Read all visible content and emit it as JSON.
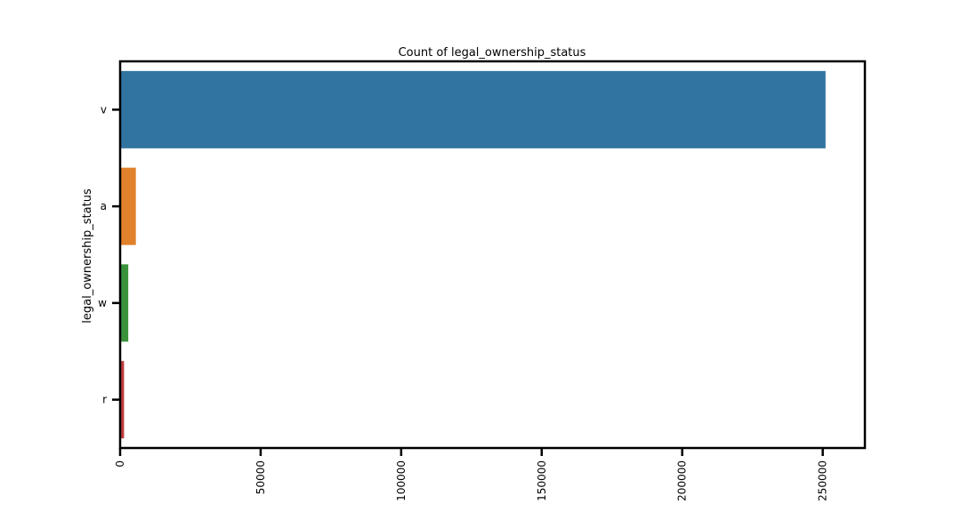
{
  "chart_data": {
    "type": "bar",
    "orientation": "horizontal",
    "title": "Count of legal_ownership_status",
    "ylabel": "legal_ownership_status",
    "xlabel": "",
    "categories": [
      "v",
      "a",
      "w",
      "r"
    ],
    "values": [
      251000,
      5600,
      2900,
      1400
    ],
    "colors": [
      "#3274a1",
      "#e1812c",
      "#3a923a",
      "#c03d3e"
    ],
    "xlim": [
      0,
      265000
    ],
    "xticks": [
      0,
      50000,
      100000,
      150000,
      200000,
      250000
    ],
    "xtick_labels": [
      "0",
      "50000",
      "100000",
      "150000",
      "200000",
      "250000"
    ],
    "grid": false,
    "legend": "none"
  }
}
